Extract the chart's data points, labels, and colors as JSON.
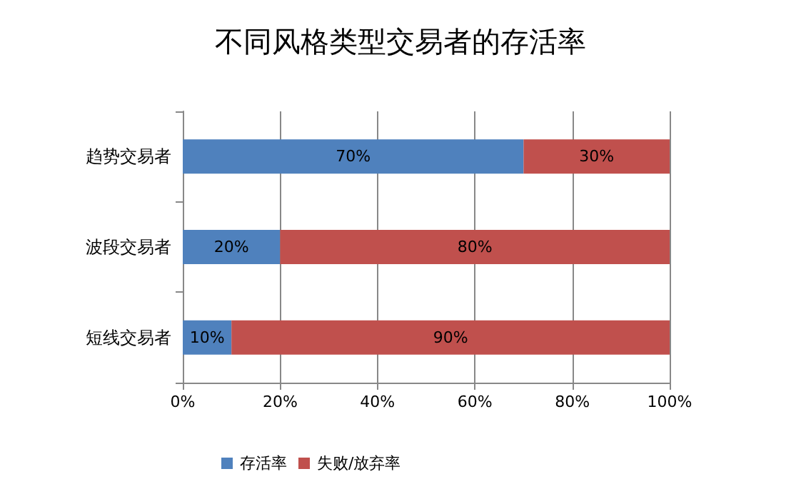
{
  "chart_data": {
    "type": "bar",
    "title": "不同风格类型交易者的存活率",
    "orientation": "horizontal",
    "stacked": true,
    "categories": [
      "趋势交易者",
      "波段交易者",
      "短线交易者"
    ],
    "series": [
      {
        "name": "存活率",
        "color": "#4f81bd",
        "values": [
          70,
          20,
          10
        ],
        "value_labels": [
          "70%",
          "20%",
          "10%"
        ]
      },
      {
        "name": "失败/放弃率",
        "color": "#c0504d",
        "values": [
          30,
          80,
          90
        ],
        "value_labels": [
          "30%",
          "80%",
          "90%"
        ]
      }
    ],
    "xlim": [
      0,
      100
    ],
    "xticks": [
      {
        "value": 0,
        "label": "0%"
      },
      {
        "value": 20,
        "label": "20%"
      },
      {
        "value": 40,
        "label": "40%"
      },
      {
        "value": 60,
        "label": "60%"
      },
      {
        "value": 80,
        "label": "80%"
      },
      {
        "value": 100,
        "label": "100%"
      }
    ],
    "grid": "x",
    "legend": "bottom"
  }
}
